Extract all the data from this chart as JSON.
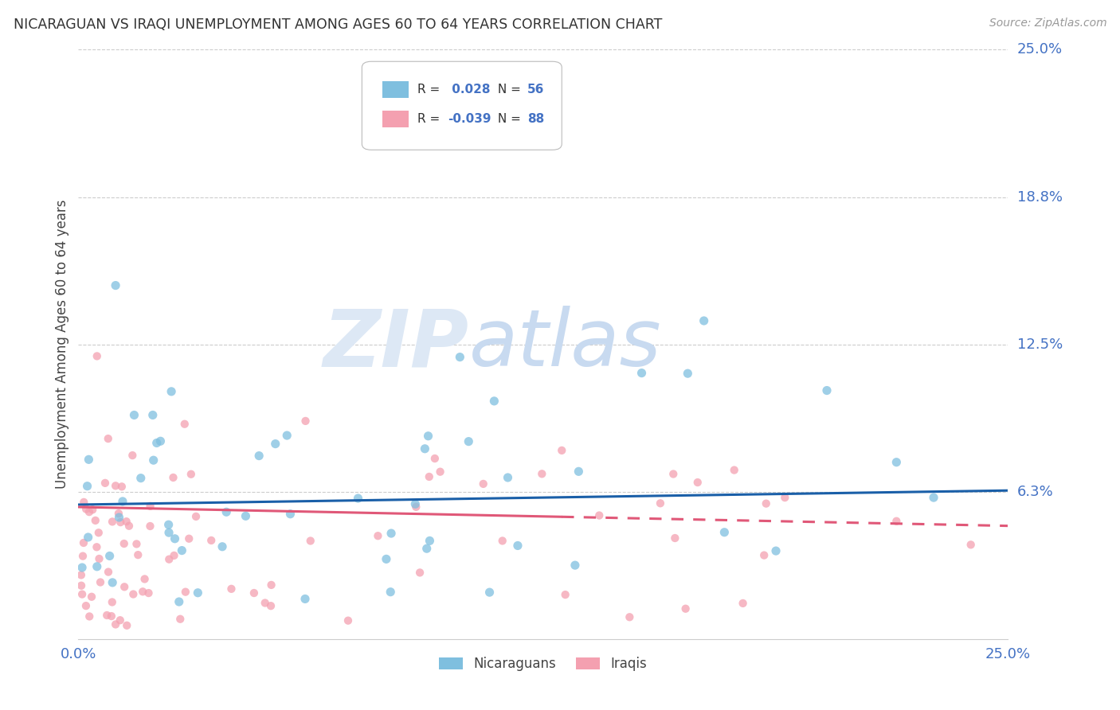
{
  "title": "NICARAGUAN VS IRAQI UNEMPLOYMENT AMONG AGES 60 TO 64 YEARS CORRELATION CHART",
  "source": "Source: ZipAtlas.com",
  "ylabel": "Unemployment Among Ages 60 to 64 years",
  "xmin": 0.0,
  "xmax": 0.25,
  "ymin": 0.0,
  "ymax": 0.25,
  "yticks": [
    0.0625,
    0.125,
    0.1875,
    0.25
  ],
  "ytick_labels": [
    "6.3%",
    "12.5%",
    "18.8%",
    "25.0%"
  ],
  "nicaraguan_color": "#7fbfdf",
  "iraqi_color": "#f4a0b0",
  "nicaraguan_line_color": "#1a5fa8",
  "iraqi_line_color": "#e05878",
  "nicaraguan_R": 0.028,
  "nicaraguan_N": 56,
  "iraqi_R": -0.039,
  "iraqi_N": 88,
  "background_color": "#ffffff",
  "grid_color": "#cccccc",
  "tick_label_color": "#4472c4",
  "nic_trend_x0": 0.0,
  "nic_trend_x1": 0.25,
  "nic_trend_y0": 0.057,
  "nic_trend_y1": 0.063,
  "irq_trend_x0": 0.0,
  "irq_trend_x1": 0.25,
  "irq_trend_y0": 0.056,
  "irq_trend_y1": 0.048
}
